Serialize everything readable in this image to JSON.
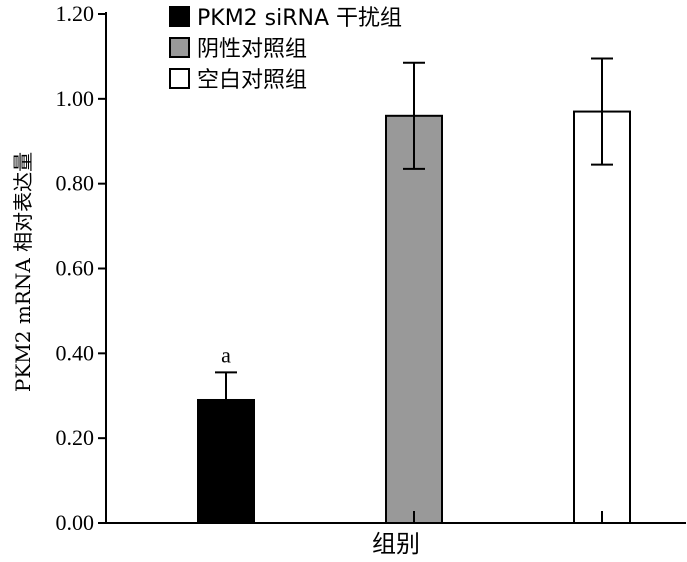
{
  "chart_data": {
    "type": "bar",
    "title": "",
    "xlabel": "组别",
    "ylabel": "PKM2 mRNA 相对表达量",
    "ylim": [
      0,
      1.2
    ],
    "yticks": [
      "0.00",
      "0.20",
      "0.40",
      "0.60",
      "0.80",
      "1.00",
      "1.20"
    ],
    "categories": [
      "PKM2 siRNA 干扰组",
      "阴性对照组",
      "空白对照组"
    ],
    "values": [
      0.29,
      0.96,
      0.97
    ],
    "errors": [
      0.065,
      0.125,
      0.125
    ],
    "colors": [
      "#000000",
      "#999999",
      "#ffffff"
    ],
    "annotations": [
      "a",
      "",
      ""
    ],
    "legend": {
      "placement": "top-left",
      "entries": [
        "PKM2 siRNA 干扰组",
        "阴性对照组",
        "空白对照组"
      ]
    },
    "grid": false
  }
}
